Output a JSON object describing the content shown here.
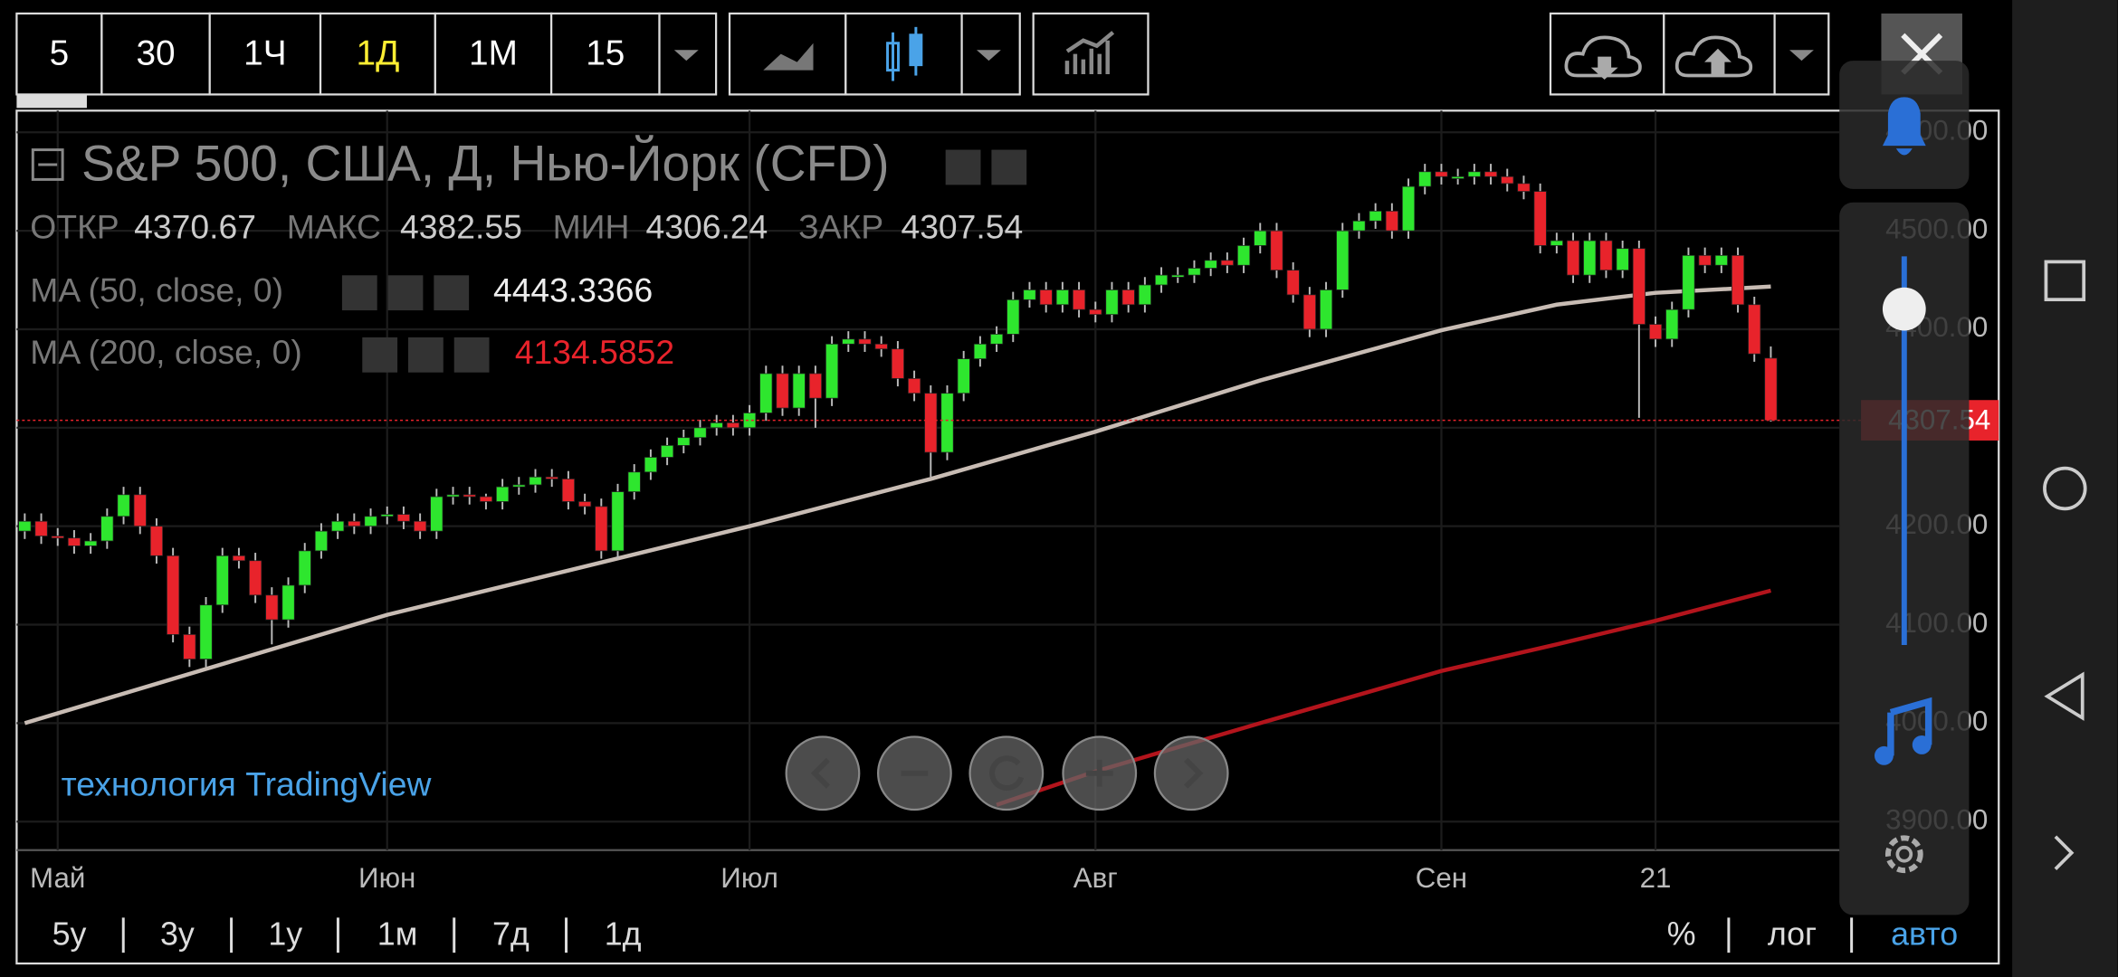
{
  "toolbar": {
    "intervals": [
      "5",
      "30",
      "1Ч",
      "1Д",
      "1М",
      "15"
    ]
  },
  "legend": {
    "title": "S&P 500, США, Д, Нью-Йорк (CFD)",
    "ohlc_labels": [
      "ОТКР",
      "МАКС",
      "МИН",
      "ЗАКР"
    ]
  },
  "watermark": "технология TradingView",
  "ranges": [
    "5у",
    "3у",
    "1у",
    "1м",
    "7д",
    "1д"
  ],
  "scale_options": [
    "%",
    "лог",
    "авто"
  ],
  "chart_data": {
    "type": "candlestick",
    "categories": [
      null,
      null,
      "Май",
      null,
      null,
      null,
      null,
      null,
      null,
      null,
      null,
      null,
      null,
      null,
      null,
      null,
      null,
      null,
      null,
      null,
      null,
      null,
      "Июн",
      null,
      null,
      null,
      null,
      null,
      null,
      null,
      null,
      null,
      null,
      null,
      null,
      null,
      null,
      null,
      null,
      null,
      null,
      null,
      null,
      null,
      "Июл",
      null,
      null,
      null,
      null,
      null,
      null,
      null,
      null,
      null,
      null,
      null,
      null,
      null,
      null,
      null,
      null,
      null,
      null,
      null,
      null,
      "Авг",
      null,
      null,
      null,
      null,
      null,
      null,
      null,
      null,
      null,
      null,
      null,
      null,
      null,
      null,
      null,
      null,
      null,
      null,
      null,
      null,
      "Сен",
      null,
      null,
      null,
      null,
      null,
      null,
      null,
      null,
      null,
      null,
      null,
      null,
      "21",
      null,
      null,
      null,
      null,
      null,
      null,
      null
    ],
    "open": [
      4195,
      4205,
      4190,
      4188,
      4180,
      4185,
      4210,
      4232,
      4200,
      4170,
      4090,
      4065,
      4120,
      4170,
      4165,
      4130,
      4105,
      4140,
      4175,
      4195,
      4205,
      4200,
      4210,
      4212,
      4205,
      4195,
      4230,
      4232,
      4230,
      4225,
      4240,
      4242,
      4250,
      4248,
      4225,
      4220,
      4175,
      4235,
      4255,
      4270,
      4282,
      4290,
      4300,
      4305,
      4300,
      4315,
      4355,
      4320,
      4355,
      4330,
      4385,
      4390,
      4385,
      4380,
      4350,
      4335,
      4275,
      4335,
      4370,
      4385,
      4395,
      4430,
      4440,
      4425,
      4440,
      4420,
      4415,
      4440,
      4425,
      4445,
      4455,
      4455,
      4462,
      4470,
      4465,
      4485,
      4500,
      4460,
      4435,
      4400,
      4440,
      4500,
      4510,
      4520,
      4500,
      4545,
      4560,
      4555,
      4555,
      4560,
      4555,
      4548,
      4540,
      4485,
      4490,
      4455,
      4490,
      4460,
      4482,
      4405,
      4390,
      4420,
      4475,
      4465,
      4475,
      4425,
      4370.67
    ],
    "high": [
      4213,
      4213,
      4198,
      4196,
      4193,
      4218,
      4240,
      4240,
      4208,
      4178,
      4098,
      4128,
      4178,
      4178,
      4173,
      4138,
      4148,
      4183,
      4203,
      4213,
      4213,
      4218,
      4220,
      4220,
      4213,
      4238,
      4240,
      4240,
      4233,
      4248,
      4250,
      4258,
      4258,
      4256,
      4233,
      4228,
      4243,
      4263,
      4278,
      4290,
      4298,
      4308,
      4313,
      4313,
      4323,
      4363,
      4363,
      4363,
      4363,
      4393,
      4398,
      4398,
      4393,
      4388,
      4358,
      4343,
      4343,
      4378,
      4393,
      4403,
      4438,
      4448,
      4448,
      4448,
      4448,
      4428,
      4448,
      4448,
      4453,
      4463,
      4463,
      4470,
      4478,
      4478,
      4493,
      4508,
      4508,
      4468,
      4443,
      4448,
      4508,
      4518,
      4528,
      4528,
      4553,
      4568,
      4568,
      4563,
      4568,
      4568,
      4563,
      4556,
      4548,
      4498,
      4498,
      4498,
      4498,
      4490,
      4490,
      4413,
      4428,
      4483,
      4483,
      4483,
      4483,
      4433,
      4382.55
    ],
    "low": [
      4187,
      4182,
      4180,
      4172,
      4172,
      4177,
      4202,
      4192,
      4162,
      4082,
      4057,
      4057,
      4112,
      4157,
      4122,
      4080,
      4097,
      4132,
      4167,
      4187,
      4192,
      4192,
      4202,
      4197,
      4187,
      4187,
      4222,
      4222,
      4217,
      4217,
      4232,
      4234,
      4240,
      4217,
      4212,
      4167,
      4167,
      4227,
      4247,
      4262,
      4274,
      4282,
      4292,
      4292,
      4292,
      4307,
      4312,
      4312,
      4300,
      4322,
      4377,
      4377,
      4372,
      4342,
      4327,
      4250,
      4267,
      4327,
      4362,
      4377,
      4387,
      4422,
      4417,
      4417,
      4412,
      4407,
      4407,
      4417,
      4417,
      4437,
      4447,
      4447,
      4454,
      4457,
      4457,
      4477,
      4452,
      4427,
      4392,
      4392,
      4432,
      4492,
      4502,
      4492,
      4492,
      4537,
      4547,
      4547,
      4547,
      4547,
      4540,
      4532,
      4477,
      4477,
      4447,
      4447,
      4452,
      4452,
      4310,
      4382,
      4382,
      4412,
      4457,
      4457,
      4417,
      4367,
      4306.24
    ],
    "close": [
      4205,
      4190,
      4188,
      4180,
      4185,
      4210,
      4232,
      4200,
      4170,
      4090,
      4065,
      4120,
      4170,
      4165,
      4130,
      4105,
      4140,
      4175,
      4195,
      4205,
      4200,
      4210,
      4212,
      4205,
      4195,
      4230,
      4232,
      4230,
      4225,
      4240,
      4242,
      4250,
      4248,
      4225,
      4220,
      4175,
      4235,
      4255,
      4270,
      4282,
      4290,
      4300,
      4305,
      4300,
      4315,
      4355,
      4320,
      4355,
      4330,
      4385,
      4390,
      4385,
      4380,
      4350,
      4335,
      4275,
      4335,
      4370,
      4385,
      4395,
      4430,
      4440,
      4425,
      4440,
      4420,
      4415,
      4440,
      4425,
      4445,
      4455,
      4455,
      4462,
      4470,
      4465,
      4485,
      4500,
      4460,
      4435,
      4400,
      4440,
      4500,
      4510,
      4520,
      4500,
      4545,
      4560,
      4555,
      4555,
      4560,
      4555,
      4548,
      4540,
      4485,
      4490,
      4455,
      4490,
      4460,
      4482,
      4405,
      4390,
      4420,
      4475,
      4465,
      4475,
      4425,
      4375,
      4307.54
    ],
    "up_color": "#2ee62e",
    "down_color": "#e8232b",
    "series": [
      {
        "name": "MA (50, close, 0)",
        "color": "#c8bcb4",
        "x": [
          0,
          11,
          22,
          33,
          44,
          55,
          65,
          75,
          86,
          93,
          99,
          106
        ],
        "values": [
          4000,
          4055,
          4110,
          4155,
          4200,
          4248,
          4296,
          4348,
          4399,
          4425,
          4437,
          4443.3366
        ]
      },
      {
        "name": "MA (200, close, 0)",
        "color": "#b3141c",
        "x": [
          59,
          65,
          75,
          86,
          93,
          99,
          106
        ],
        "values": [
          3917,
          3951,
          4000,
          4053,
          4080,
          4104,
          4134.5852
        ]
      }
    ],
    "ylim": [
      3871,
      4622
    ],
    "yticks": [
      {
        "value": 3900,
        "label": "3900.00"
      },
      {
        "value": 4000,
        "label": "4000.00"
      },
      {
        "value": 4100,
        "label": "4100.00"
      },
      {
        "value": 4200,
        "label": "4200.00"
      },
      {
        "value": 4300,
        "label": "4300.00"
      },
      {
        "value": 4400,
        "label": "4400.00"
      },
      {
        "value": 4500,
        "label": "4500.00"
      },
      {
        "value": 4600,
        "label": "4600.00"
      }
    ],
    "grid": true
  }
}
